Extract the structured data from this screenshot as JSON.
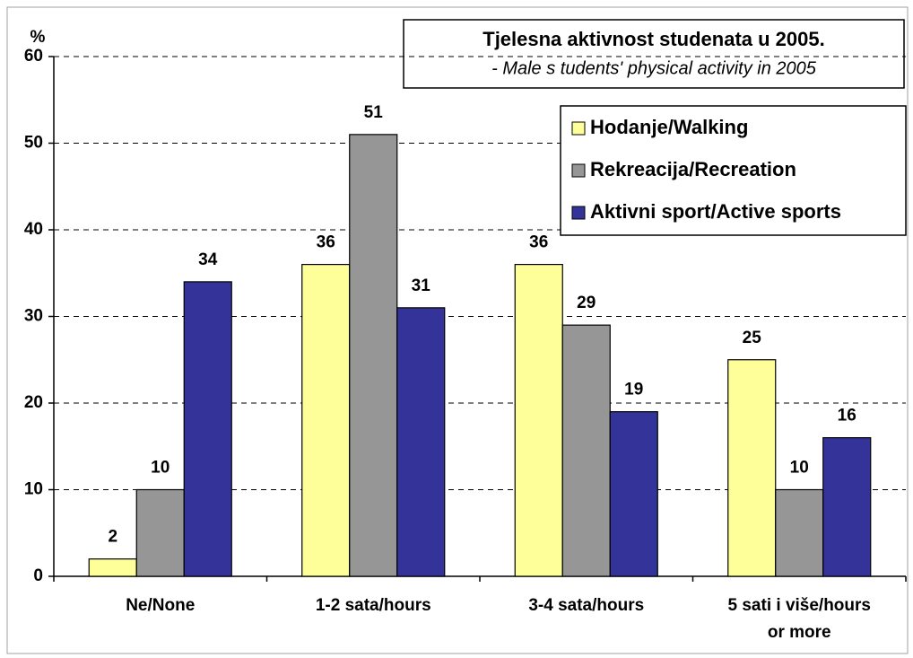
{
  "chart_data": {
    "type": "bar",
    "title": "Tjelesna aktivnost studenata u 2005.",
    "subtitle": "- Male s tudents' physical activity in 2005",
    "ylabel": "%",
    "categories": [
      "Ne/None",
      "1-2 sata/hours",
      "3-4  sata/hours",
      "5 sati i više/hours or more"
    ],
    "series": [
      {
        "name": "Hodanje/Walking",
        "color": "#ffff99",
        "values": [
          2,
          36,
          36,
          25
        ]
      },
      {
        "name": "Rekreacija/Recreation",
        "color": "#969696",
        "values": [
          10,
          51,
          29,
          10
        ]
      },
      {
        "name": "Aktivni sport/Active sports",
        "color": "#333399",
        "values": [
          34,
          31,
          19,
          16
        ]
      }
    ],
    "ylim": [
      0,
      60
    ],
    "yticks": [
      0,
      10,
      20,
      30,
      40,
      50,
      60
    ],
    "grid": true,
    "legend": "upper right"
  }
}
